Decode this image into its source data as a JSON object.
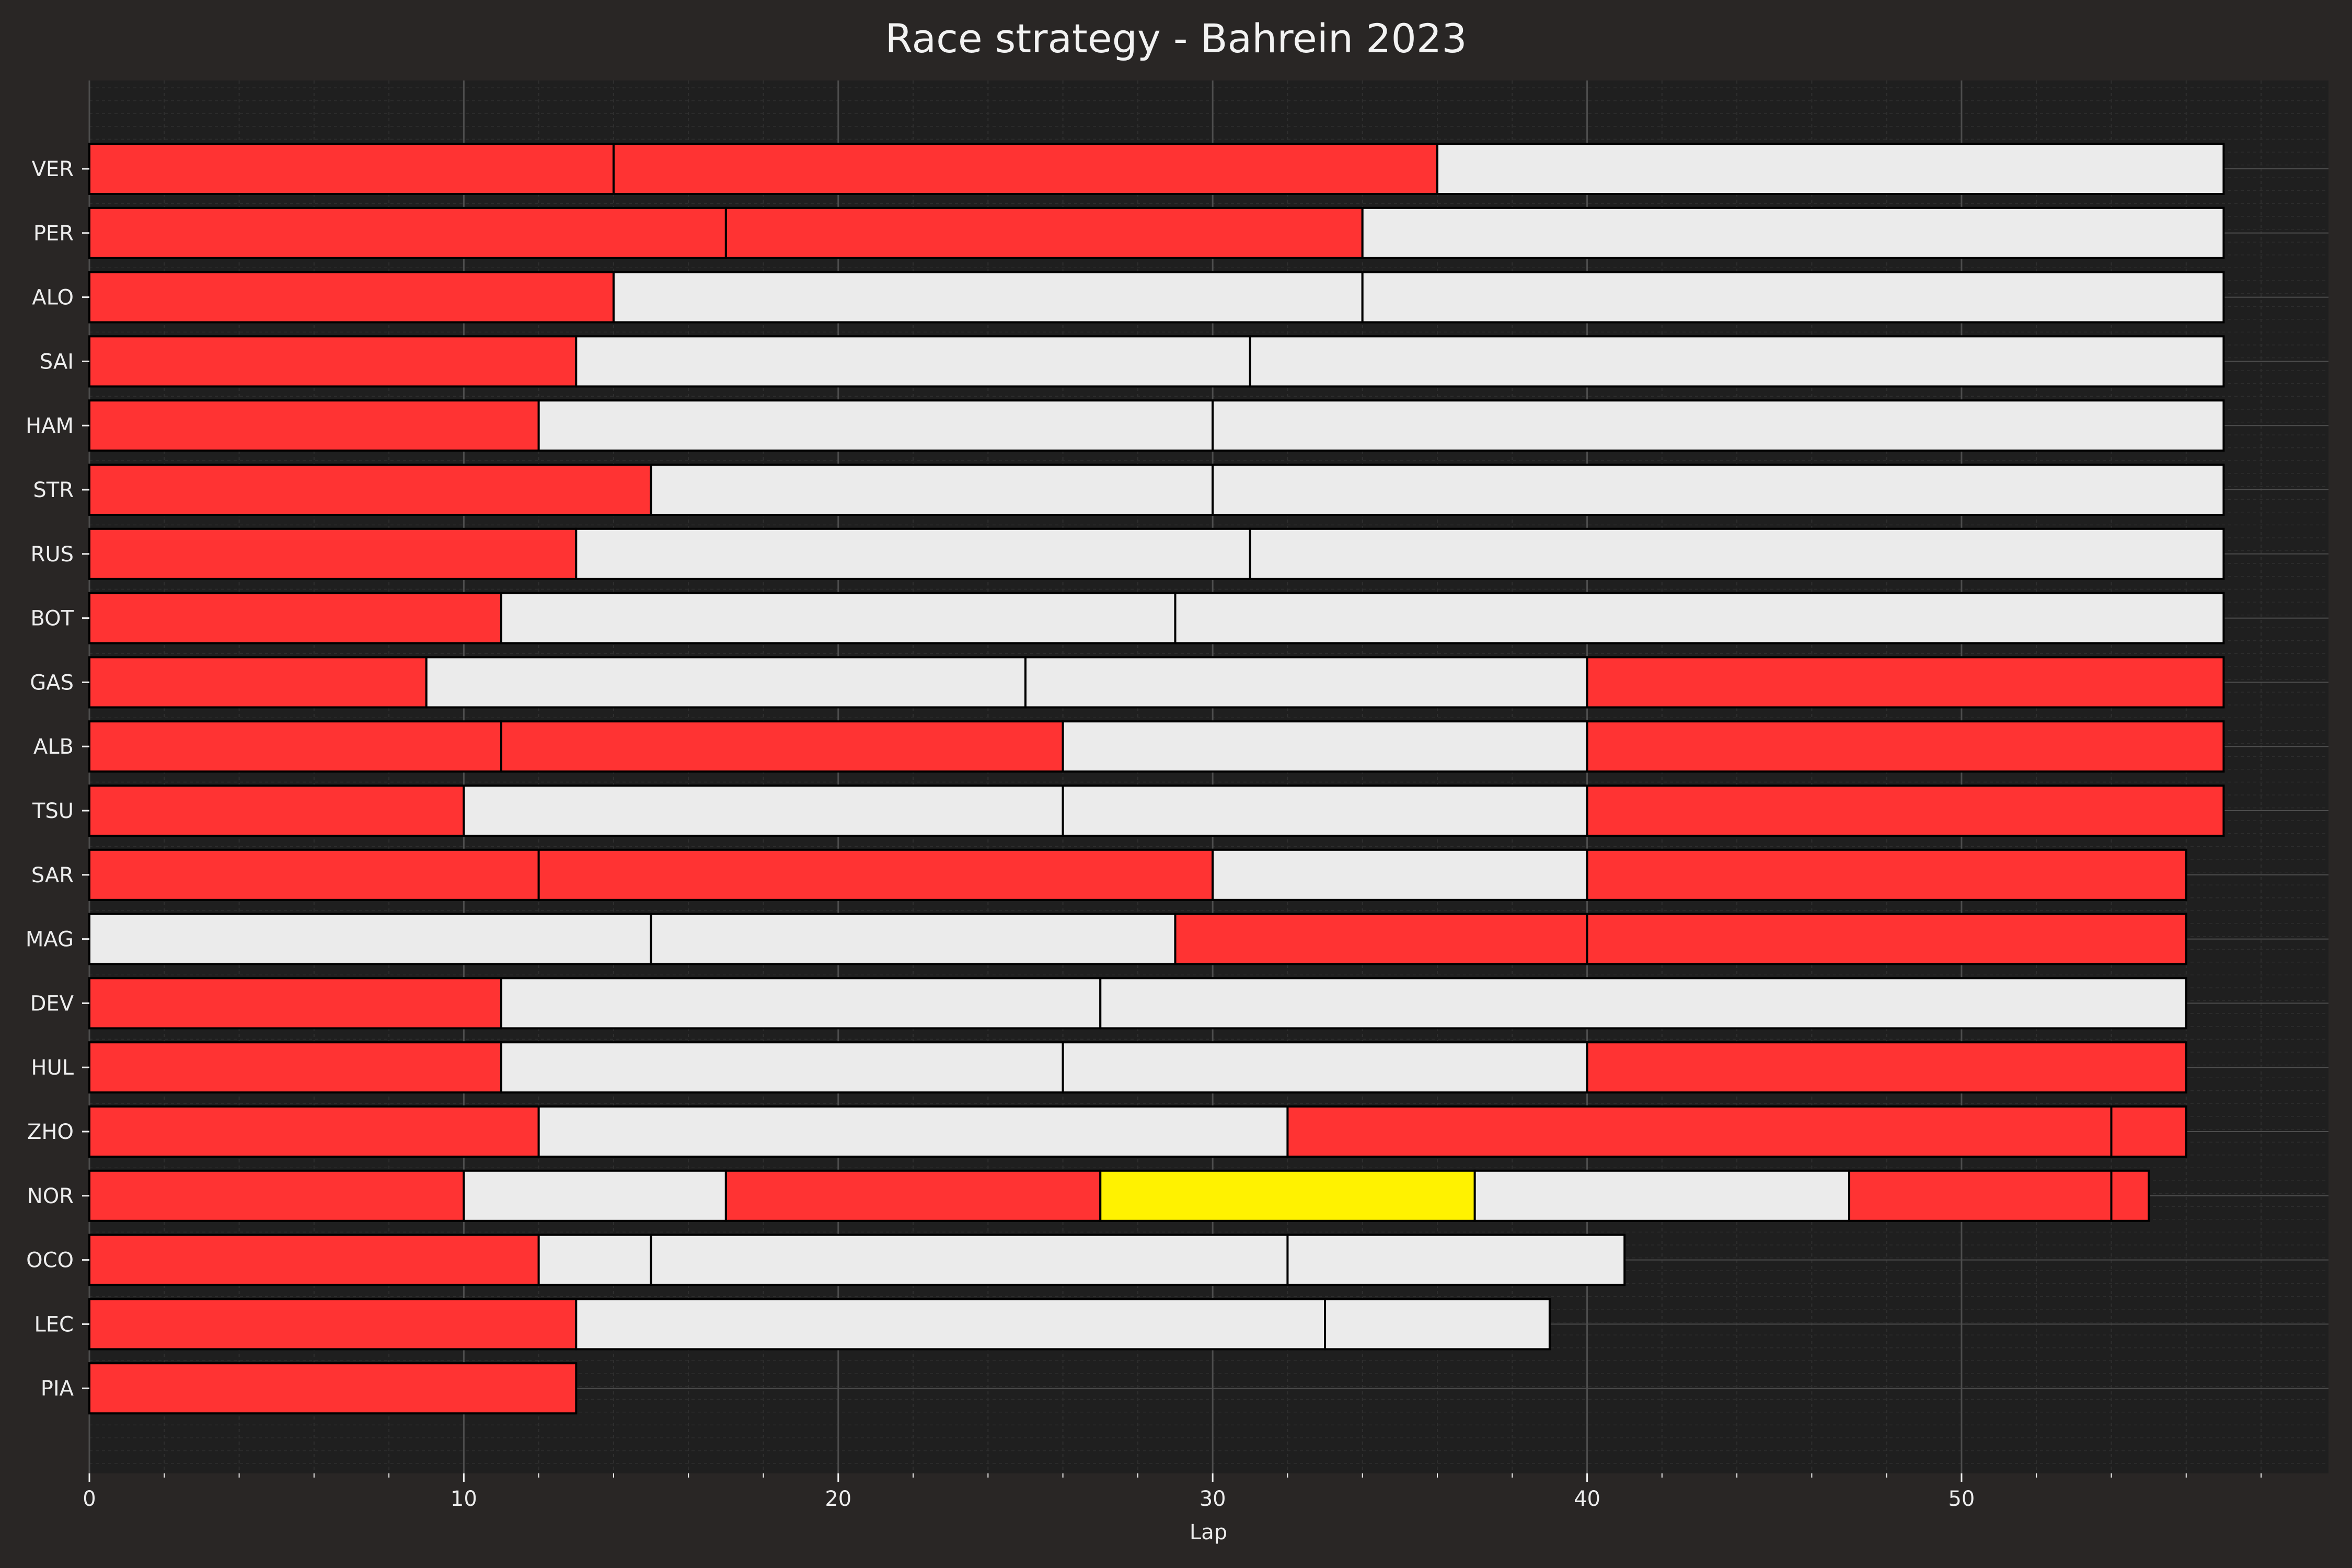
{
  "chart_data": {
    "type": "bar",
    "orientation": "horizontal-stacked",
    "title": "Race strategy - Bahrein 2023",
    "xlabel": "Lap",
    "ylabel": "",
    "xlim": [
      0,
      59.8
    ],
    "x_ticks": [
      0,
      10,
      20,
      30,
      40,
      50
    ],
    "grid": true,
    "colors": {
      "background": "#292625",
      "plot_background": "#1f1f1f",
      "soft": "#ff3333",
      "hard": "#ebebeb",
      "medium": "#fff200",
      "edge": "#000000",
      "grid_major": "#4d4d4d",
      "text": "#ededed"
    },
    "drivers": [
      {
        "name": "VER",
        "stints": [
          {
            "compound": "soft",
            "end": 14
          },
          {
            "compound": "soft",
            "end": 36
          },
          {
            "compound": "hard",
            "end": 57
          }
        ]
      },
      {
        "name": "PER",
        "stints": [
          {
            "compound": "soft",
            "end": 17
          },
          {
            "compound": "soft",
            "end": 34
          },
          {
            "compound": "hard",
            "end": 57
          }
        ]
      },
      {
        "name": "ALO",
        "stints": [
          {
            "compound": "soft",
            "end": 14
          },
          {
            "compound": "hard",
            "end": 34
          },
          {
            "compound": "hard",
            "end": 57
          }
        ]
      },
      {
        "name": "SAI",
        "stints": [
          {
            "compound": "soft",
            "end": 13
          },
          {
            "compound": "hard",
            "end": 31
          },
          {
            "compound": "hard",
            "end": 57
          }
        ]
      },
      {
        "name": "HAM",
        "stints": [
          {
            "compound": "soft",
            "end": 12
          },
          {
            "compound": "hard",
            "end": 30
          },
          {
            "compound": "hard",
            "end": 57
          }
        ]
      },
      {
        "name": "STR",
        "stints": [
          {
            "compound": "soft",
            "end": 15
          },
          {
            "compound": "hard",
            "end": 30
          },
          {
            "compound": "hard",
            "end": 57
          }
        ]
      },
      {
        "name": "RUS",
        "stints": [
          {
            "compound": "soft",
            "end": 13
          },
          {
            "compound": "hard",
            "end": 31
          },
          {
            "compound": "hard",
            "end": 57
          }
        ]
      },
      {
        "name": "BOT",
        "stints": [
          {
            "compound": "soft",
            "end": 11
          },
          {
            "compound": "hard",
            "end": 29
          },
          {
            "compound": "hard",
            "end": 57
          }
        ]
      },
      {
        "name": "GAS",
        "stints": [
          {
            "compound": "soft",
            "end": 9
          },
          {
            "compound": "hard",
            "end": 25
          },
          {
            "compound": "hard",
            "end": 40
          },
          {
            "compound": "soft",
            "end": 57
          }
        ]
      },
      {
        "name": "ALB",
        "stints": [
          {
            "compound": "soft",
            "end": 11
          },
          {
            "compound": "soft",
            "end": 26
          },
          {
            "compound": "hard",
            "end": 40
          },
          {
            "compound": "soft",
            "end": 57
          }
        ]
      },
      {
        "name": "TSU",
        "stints": [
          {
            "compound": "soft",
            "end": 10
          },
          {
            "compound": "hard",
            "end": 26
          },
          {
            "compound": "hard",
            "end": 40
          },
          {
            "compound": "soft",
            "end": 57
          }
        ]
      },
      {
        "name": "SAR",
        "stints": [
          {
            "compound": "soft",
            "end": 12
          },
          {
            "compound": "soft",
            "end": 30
          },
          {
            "compound": "hard",
            "end": 40
          },
          {
            "compound": "soft",
            "end": 56
          }
        ]
      },
      {
        "name": "MAG",
        "stints": [
          {
            "compound": "hard",
            "end": 15
          },
          {
            "compound": "hard",
            "end": 29
          },
          {
            "compound": "soft",
            "end": 40
          },
          {
            "compound": "soft",
            "end": 56
          }
        ]
      },
      {
        "name": "DEV",
        "stints": [
          {
            "compound": "soft",
            "end": 11
          },
          {
            "compound": "hard",
            "end": 27
          },
          {
            "compound": "hard",
            "end": 56
          }
        ]
      },
      {
        "name": "HUL",
        "stints": [
          {
            "compound": "soft",
            "end": 11
          },
          {
            "compound": "hard",
            "end": 26
          },
          {
            "compound": "hard",
            "end": 40
          },
          {
            "compound": "soft",
            "end": 56
          }
        ]
      },
      {
        "name": "ZHO",
        "stints": [
          {
            "compound": "soft",
            "end": 12
          },
          {
            "compound": "hard",
            "end": 32
          },
          {
            "compound": "soft",
            "end": 54
          },
          {
            "compound": "soft",
            "end": 56
          }
        ]
      },
      {
        "name": "NOR",
        "stints": [
          {
            "compound": "soft",
            "end": 10
          },
          {
            "compound": "hard",
            "end": 17
          },
          {
            "compound": "soft",
            "end": 27
          },
          {
            "compound": "medium",
            "end": 37
          },
          {
            "compound": "hard",
            "end": 47
          },
          {
            "compound": "soft",
            "end": 54
          },
          {
            "compound": "soft",
            "end": 55
          }
        ]
      },
      {
        "name": "OCO",
        "stints": [
          {
            "compound": "soft",
            "end": 12
          },
          {
            "compound": "hard",
            "end": 15
          },
          {
            "compound": "hard",
            "end": 32
          },
          {
            "compound": "hard",
            "end": 41
          }
        ]
      },
      {
        "name": "LEC",
        "stints": [
          {
            "compound": "soft",
            "end": 13
          },
          {
            "compound": "hard",
            "end": 33
          },
          {
            "compound": "hard",
            "end": 39
          }
        ]
      },
      {
        "name": "PIA",
        "stints": [
          {
            "compound": "soft",
            "end": 13
          }
        ]
      }
    ]
  }
}
